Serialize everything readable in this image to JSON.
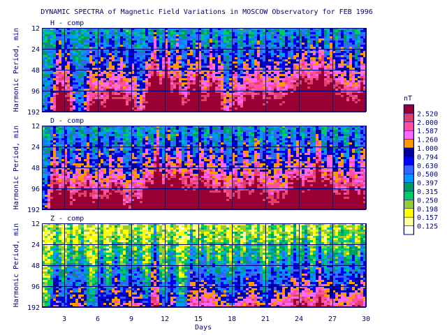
{
  "chart_data": {
    "type": "heatmap",
    "title": "DYNAMIC SPECTRA of Magnetic Field Variations in MOSCOW Observatory for FEB 1996",
    "xlabel": "Days",
    "ylabel": "Harmonic Period, min",
    "x_range": [
      1,
      30
    ],
    "x_ticks": [
      "3",
      "6",
      "9",
      "12",
      "15",
      "18",
      "21",
      "24",
      "27",
      "30"
    ],
    "y_scale": "log",
    "y_range": [
      12,
      192
    ],
    "y_ticks": [
      "12",
      "24",
      "48",
      "96",
      "192"
    ],
    "grid": true,
    "legend_position": "right",
    "panels": [
      {
        "name": "H - comp",
        "base_level": 5.0,
        "texture_seed": 11,
        "bursts": [
          [
            2.4,
            1.2
          ],
          [
            3.2,
            0.9
          ],
          [
            5.3,
            0.9
          ],
          [
            6.2,
            0.8
          ],
          [
            7.1,
            1.0
          ],
          [
            8.0,
            1.0
          ],
          [
            9.0,
            0.9
          ],
          [
            10.3,
            0.8
          ],
          [
            11.0,
            1.6
          ],
          [
            12.0,
            1.7
          ],
          [
            13.0,
            1.2
          ],
          [
            14.1,
            1.0
          ],
          [
            14.9,
            1.3
          ],
          [
            16.0,
            1.2
          ],
          [
            16.8,
            0.9
          ],
          [
            18.1,
            0.9
          ],
          [
            19.2,
            1.0
          ],
          [
            20.2,
            1.1
          ],
          [
            21.1,
            0.8
          ],
          [
            21.9,
            0.8
          ],
          [
            22.8,
            0.9
          ],
          [
            23.6,
            1.0
          ],
          [
            24.3,
            1.3
          ],
          [
            25.1,
            1.2
          ],
          [
            25.9,
            1.6
          ],
          [
            26.8,
            1.3
          ],
          [
            27.7,
            1.0
          ],
          [
            28.6,
            0.9
          ],
          [
            29.6,
            1.2
          ]
        ]
      },
      {
        "name": "D - comp",
        "base_level": 5.0,
        "texture_seed": 23,
        "bursts": [
          [
            2.0,
            1.3
          ],
          [
            3.0,
            1.2
          ],
          [
            4.1,
            1.0
          ],
          [
            5.0,
            1.1
          ],
          [
            6.1,
            1.0
          ],
          [
            7.1,
            1.0
          ],
          [
            7.9,
            1.0
          ],
          [
            9.1,
            1.0
          ],
          [
            10.2,
            1.2
          ],
          [
            11.2,
            1.9
          ],
          [
            12.2,
            1.4
          ],
          [
            13.1,
            1.4
          ],
          [
            14.1,
            1.3
          ],
          [
            15.1,
            1.4
          ],
          [
            16.0,
            1.1
          ],
          [
            17.0,
            1.2
          ],
          [
            18.1,
            1.1
          ],
          [
            19.1,
            1.2
          ],
          [
            20.1,
            1.3
          ],
          [
            21.0,
            0.9
          ],
          [
            22.0,
            1.0
          ],
          [
            23.0,
            1.1
          ],
          [
            23.8,
            1.2
          ],
          [
            24.7,
            1.1
          ],
          [
            25.6,
            1.8
          ],
          [
            26.6,
            1.3
          ],
          [
            27.6,
            1.0
          ],
          [
            28.6,
            1.2
          ],
          [
            29.6,
            1.1
          ]
        ]
      },
      {
        "name": "Z - comp",
        "base_level": 1.9,
        "texture_seed": 37,
        "bursts": [
          [
            2.2,
            0.8
          ],
          [
            3.5,
            0.7
          ],
          [
            4.5,
            0.8
          ],
          [
            6.2,
            0.8
          ],
          [
            7.5,
            0.9
          ],
          [
            8.7,
            0.8
          ],
          [
            9.6,
            0.7
          ],
          [
            11.0,
            1.3
          ],
          [
            12.5,
            0.8
          ],
          [
            14.3,
            1.0
          ],
          [
            15.3,
            0.9
          ],
          [
            16.2,
            0.8
          ],
          [
            17.2,
            0.7
          ],
          [
            18.4,
            0.8
          ],
          [
            19.4,
            0.9
          ],
          [
            20.2,
            0.8
          ],
          [
            21.5,
            0.8
          ],
          [
            22.5,
            0.9
          ],
          [
            23.5,
            1.1
          ],
          [
            24.5,
            1.2
          ],
          [
            25.7,
            1.3
          ],
          [
            26.7,
            0.9
          ],
          [
            27.7,
            0.8
          ],
          [
            28.7,
            0.9
          ],
          [
            29.6,
            1.0
          ]
        ]
      }
    ],
    "colorbar": {
      "unit": "nT",
      "levels": [
        "2.520",
        "2.000",
        "1.587",
        "1.260",
        "1.000",
        "0.794",
        "0.630",
        "0.500",
        "0.397",
        "0.315",
        "0.250",
        "0.198",
        "0.157",
        "0.125",
        ""
      ],
      "colors": [
        "#990033",
        "#e0406a",
        "#ff4fa0",
        "#ff66ff",
        "#ff9900",
        "#000099",
        "#0000ff",
        "#3366ff",
        "#0099ff",
        "#009966",
        "#00cc66",
        "#99cc33",
        "#ffff00",
        "#ffff99",
        "#ffffff"
      ]
    }
  }
}
